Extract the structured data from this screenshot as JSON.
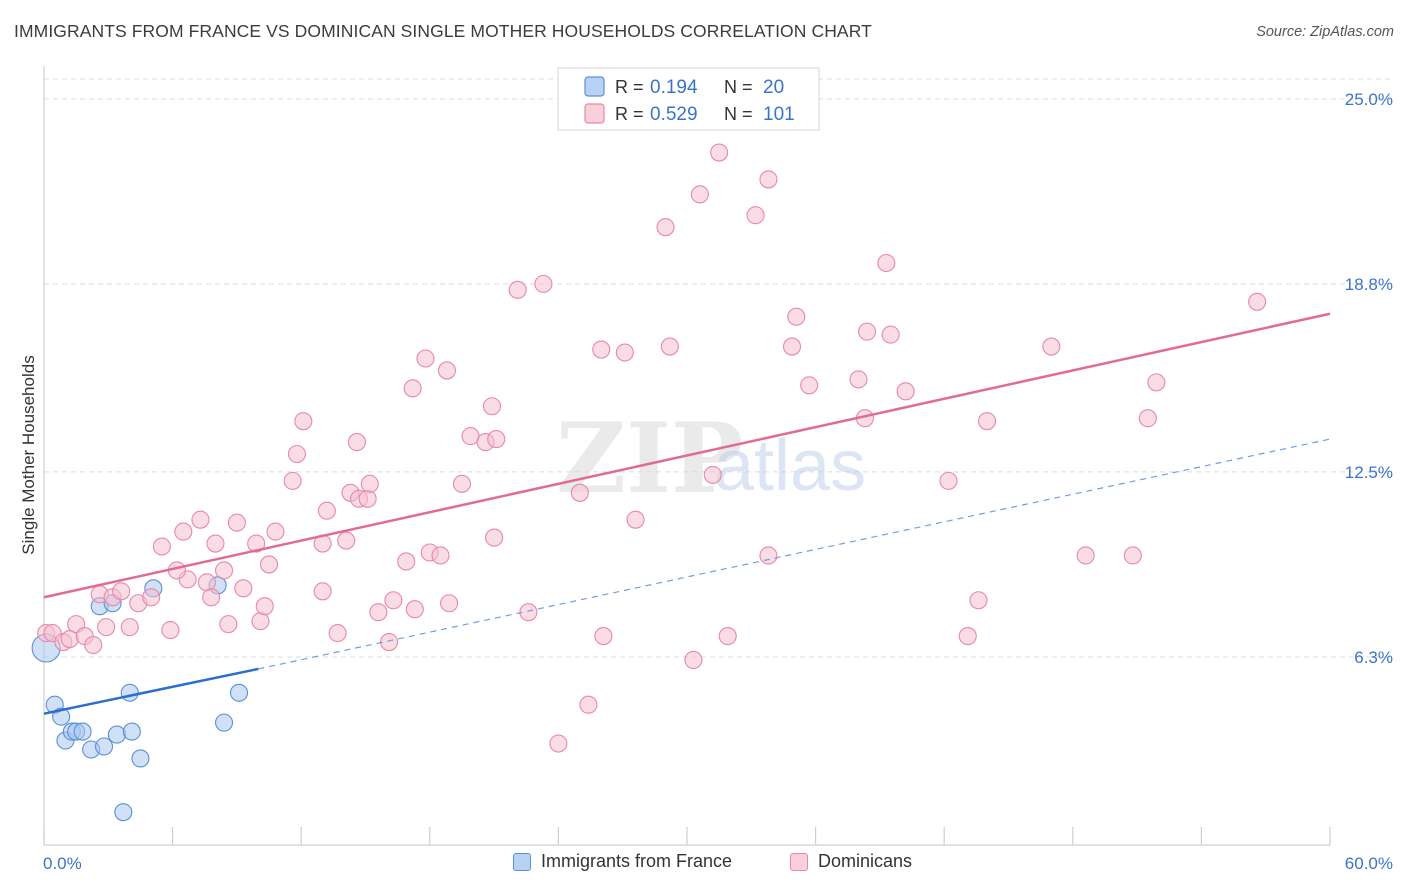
{
  "title": "IMMIGRANTS FROM FRANCE VS DOMINICAN SINGLE MOTHER HOUSEHOLDS CORRELATION CHART",
  "source": "Source: ZipAtlas.com",
  "watermark": {
    "zip": "ZIP",
    "atlas": "atlas"
  },
  "colors": {
    "blue_fill": "#a9c8f0",
    "blue_stroke": "#5b8fd6",
    "blue_line": "#2a6fd0",
    "pink_fill": "#f6bfd0",
    "pink_stroke": "#e888a8",
    "pink_line": "#e06b93",
    "tick_label": "#3a74c9",
    "grid": "#dcdcdc"
  },
  "chart_data": {
    "type": "scatter",
    "title": "IMMIGRANTS FROM FRANCE VS DOMINICAN SINGLE MOTHER HOUSEHOLDS CORRELATION CHART",
    "xlabel": "",
    "ylabel": "Single Mother Households",
    "xlim": [
      0,
      60
    ],
    "ylim": [
      0,
      26.1
    ],
    "x_tick_labels": [
      "0.0%",
      "60.0%"
    ],
    "y_ticks": [
      6.3,
      12.5,
      18.8,
      25.0
    ],
    "y_tick_labels": [
      "6.3%",
      "12.5%",
      "18.8%",
      "25.0%"
    ],
    "grid": true,
    "legend_position": "top-center",
    "legend": [
      {
        "r_label": "R =",
        "r_value": "0.194",
        "n_label": "N =",
        "n_value": "20"
      },
      {
        "r_label": "R =",
        "r_value": "0.529",
        "n_label": "N =",
        "n_value": "101"
      }
    ],
    "series": [
      {
        "name": "Immigrants from France",
        "color": "blue",
        "points": [
          [
            0.1,
            6.6
          ],
          [
            0.5,
            4.7
          ],
          [
            0.8,
            4.3
          ],
          [
            1.0,
            3.5
          ],
          [
            1.3,
            3.8
          ],
          [
            1.5,
            3.8
          ],
          [
            1.8,
            3.8
          ],
          [
            2.2,
            3.2
          ],
          [
            2.8,
            3.3
          ],
          [
            3.4,
            3.7
          ],
          [
            4.1,
            3.8
          ],
          [
            4.5,
            2.9
          ],
          [
            2.6,
            8.0
          ],
          [
            3.2,
            8.1
          ],
          [
            5.1,
            8.6
          ],
          [
            8.1,
            8.7
          ],
          [
            4.0,
            5.1
          ],
          [
            8.4,
            4.1
          ],
          [
            9.1,
            5.1
          ],
          [
            3.7,
            1.1
          ]
        ],
        "trend": {
          "x": [
            0,
            10
          ],
          "y": [
            4.4,
            5.9
          ]
        },
        "trend_extension": {
          "x": [
            10,
            60
          ],
          "y": [
            5.9,
            13.6
          ]
        }
      },
      {
        "name": "Dominicans",
        "color": "pink",
        "points": [
          [
            0.1,
            7.1
          ],
          [
            0.4,
            7.1
          ],
          [
            0.9,
            6.8
          ],
          [
            1.2,
            6.9
          ],
          [
            1.5,
            7.4
          ],
          [
            1.9,
            7.0
          ],
          [
            2.3,
            6.7
          ],
          [
            2.6,
            8.4
          ],
          [
            2.9,
            7.3
          ],
          [
            3.2,
            8.3
          ],
          [
            3.6,
            8.5
          ],
          [
            4.0,
            7.3
          ],
          [
            4.4,
            8.1
          ],
          [
            5.0,
            8.3
          ],
          [
            5.9,
            7.2
          ],
          [
            6.7,
            8.9
          ],
          [
            5.5,
            10.0
          ],
          [
            6.2,
            9.2
          ],
          [
            6.5,
            10.5
          ],
          [
            7.3,
            10.9
          ],
          [
            7.6,
            8.8
          ],
          [
            7.8,
            8.3
          ],
          [
            8.0,
            10.1
          ],
          [
            8.4,
            9.2
          ],
          [
            8.6,
            7.4
          ],
          [
            9.0,
            10.8
          ],
          [
            9.3,
            8.6
          ],
          [
            9.9,
            10.1
          ],
          [
            10.1,
            7.5
          ],
          [
            10.3,
            8.0
          ],
          [
            10.5,
            9.4
          ],
          [
            10.8,
            10.5
          ],
          [
            11.6,
            12.2
          ],
          [
            11.8,
            13.1
          ],
          [
            12.1,
            14.2
          ],
          [
            13.0,
            10.1
          ],
          [
            13.2,
            11.2
          ],
          [
            13.0,
            8.5
          ],
          [
            13.7,
            7.1
          ],
          [
            14.1,
            10.2
          ],
          [
            14.3,
            11.8
          ],
          [
            14.7,
            11.6
          ],
          [
            14.6,
            13.5
          ],
          [
            15.1,
            11.6
          ],
          [
            15.2,
            12.1
          ],
          [
            15.6,
            7.8
          ],
          [
            16.1,
            6.8
          ],
          [
            16.3,
            8.2
          ],
          [
            16.9,
            9.5
          ],
          [
            17.2,
            15.3
          ],
          [
            17.8,
            16.3
          ],
          [
            17.3,
            7.9
          ],
          [
            18.0,
            9.8
          ],
          [
            18.5,
            9.7
          ],
          [
            18.8,
            15.9
          ],
          [
            18.9,
            8.1
          ],
          [
            19.5,
            12.1
          ],
          [
            19.9,
            13.7
          ],
          [
            20.6,
            13.5
          ],
          [
            20.9,
            14.7
          ],
          [
            21.0,
            10.3
          ],
          [
            21.1,
            13.6
          ],
          [
            22.1,
            18.6
          ],
          [
            22.6,
            7.8
          ],
          [
            23.3,
            18.8
          ],
          [
            24.0,
            3.4
          ],
          [
            25.0,
            11.8
          ],
          [
            25.4,
            4.7
          ],
          [
            26.0,
            16.6
          ],
          [
            26.1,
            7.0
          ],
          [
            27.1,
            16.5
          ],
          [
            27.6,
            10.9
          ],
          [
            29.0,
            20.7
          ],
          [
            29.2,
            16.7
          ],
          [
            30.3,
            6.2
          ],
          [
            30.6,
            21.8
          ],
          [
            31.2,
            12.4
          ],
          [
            31.5,
            23.2
          ],
          [
            31.9,
            7.0
          ],
          [
            33.2,
            21.1
          ],
          [
            33.8,
            9.7
          ],
          [
            33.8,
            22.3
          ],
          [
            34.9,
            16.7
          ],
          [
            35.1,
            17.7
          ],
          [
            35.7,
            15.4
          ],
          [
            38.0,
            15.6
          ],
          [
            38.3,
            14.3
          ],
          [
            38.4,
            17.2
          ],
          [
            39.3,
            19.5
          ],
          [
            39.5,
            17.1
          ],
          [
            40.2,
            15.2
          ],
          [
            42.2,
            12.2
          ],
          [
            43.1,
            7.0
          ],
          [
            43.6,
            8.2
          ],
          [
            44.0,
            14.2
          ],
          [
            47.0,
            16.7
          ],
          [
            48.6,
            9.7
          ],
          [
            50.8,
            9.7
          ],
          [
            51.5,
            14.3
          ],
          [
            51.9,
            15.5
          ],
          [
            56.6,
            18.2
          ]
        ],
        "trend": {
          "x": [
            0,
            60
          ],
          "y": [
            8.3,
            17.8
          ]
        }
      }
    ]
  },
  "bottom_legend": [
    {
      "label": "Immigrants from France",
      "color": "blue"
    },
    {
      "label": "Dominicans",
      "color": "pink"
    }
  ]
}
